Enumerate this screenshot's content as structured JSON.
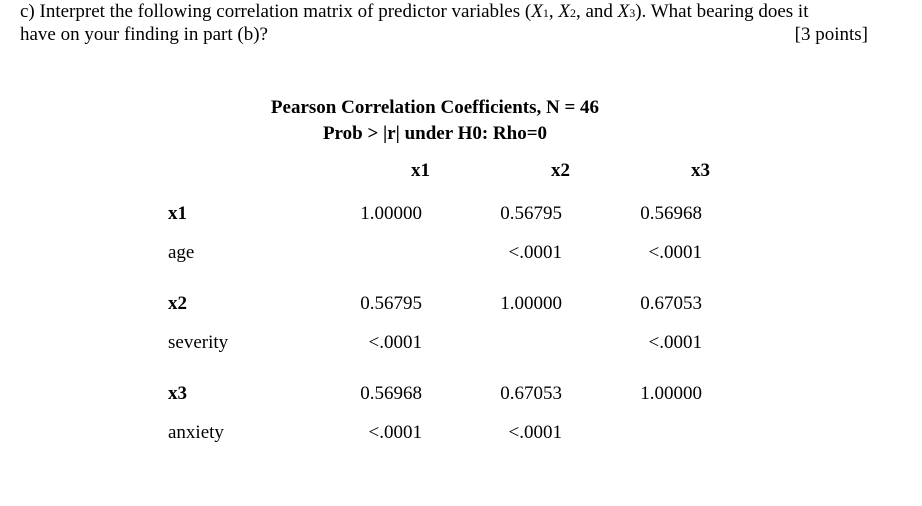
{
  "question": {
    "line1_pre": "c) Interpret the following correlation matrix of predictor variables (",
    "x1_letter": "X",
    "x1_sub": "1",
    "sep1": ", ",
    "x2_letter": "X",
    "x2_sub": "2",
    "sep2": ", and ",
    "x3_letter": "X",
    "x3_sub": "3",
    "line1_post": "). What bearing does it",
    "line2": "have on your finding in part (b)?",
    "points": "[3 points]"
  },
  "matrix": {
    "title": "Pearson Correlation Coefficients, N = 46",
    "subtitle": "Prob > |r| under H0: Rho=0",
    "columns": [
      "x1",
      "x2",
      "x3"
    ],
    "rows": [
      {
        "name": "x1",
        "label": "age",
        "coefficients": [
          "1.00000",
          "0.56795",
          "0.56968"
        ],
        "pvalues": [
          "",
          "<.0001",
          "<.0001"
        ]
      },
      {
        "name": "x2",
        "label": "severity",
        "coefficients": [
          "0.56795",
          "1.00000",
          "0.67053"
        ],
        "pvalues": [
          "<.0001",
          "",
          "<.0001"
        ]
      },
      {
        "name": "x3",
        "label": "anxiety",
        "coefficients": [
          "0.56968",
          "0.67053",
          "1.00000"
        ],
        "pvalues": [
          "<.0001",
          "<.0001",
          ""
        ]
      }
    ]
  }
}
